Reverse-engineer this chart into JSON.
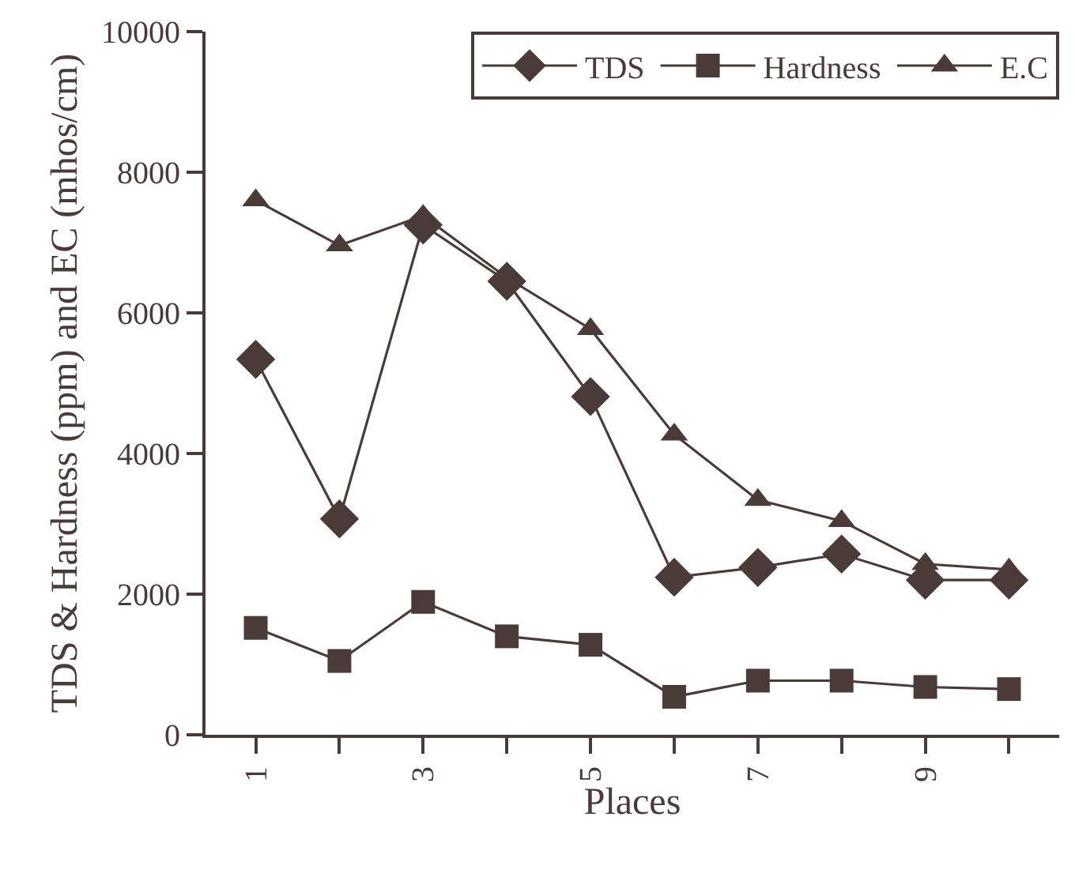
{
  "chart_data": {
    "type": "line",
    "xlabel": "Places",
    "ylabel": "TDS & Hardness (ppm) and EC (mhos/cm)",
    "categories": [
      "1",
      null,
      "3",
      null,
      "5",
      null,
      "7",
      null,
      "9",
      null
    ],
    "series": [
      {
        "name": "TDS",
        "color": "#4a3b39",
        "marker": "diamond",
        "values": [
          5340,
          3070,
          7250,
          6450,
          4810,
          2240,
          2380,
          2570,
          2200,
          2200
        ]
      },
      {
        "name": "Hardness",
        "color": "#4a3b39",
        "marker": "square",
        "values": [
          1520,
          1050,
          1890,
          1400,
          1280,
          540,
          770,
          770,
          680,
          650
        ]
      },
      {
        "name": "E.C",
        "color": "#4a3b39",
        "marker": "triangle",
        "values": [
          7600,
          6960,
          7380,
          6500,
          5770,
          4270,
          3340,
          3040,
          2430,
          2350
        ]
      }
    ],
    "ylim": [
      0,
      10000
    ],
    "yticks": [
      0,
      2000,
      4000,
      6000,
      8000,
      10000
    ],
    "grid": false,
    "legend": "top right",
    "line_style": "solid"
  }
}
